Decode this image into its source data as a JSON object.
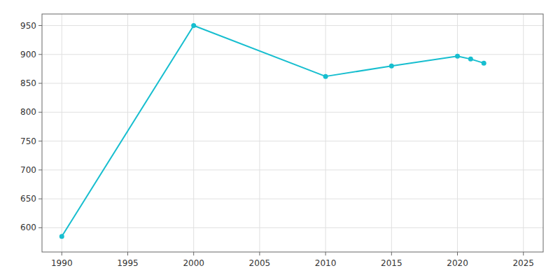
{
  "chart_data": {
    "type": "line",
    "x": [
      1990,
      2000,
      2010,
      2015,
      2020,
      2021,
      2022
    ],
    "values": [
      585,
      950,
      862,
      880,
      897,
      892,
      885
    ],
    "color": "#17becf",
    "marker": "circle",
    "xlim": [
      1988.5,
      2026.5
    ],
    "ylim": [
      558,
      970
    ],
    "xticks": [
      1990,
      1995,
      2000,
      2005,
      2010,
      2015,
      2020,
      2025
    ],
    "yticks": [
      600,
      650,
      700,
      750,
      800,
      850,
      900,
      950
    ],
    "grid": true
  }
}
